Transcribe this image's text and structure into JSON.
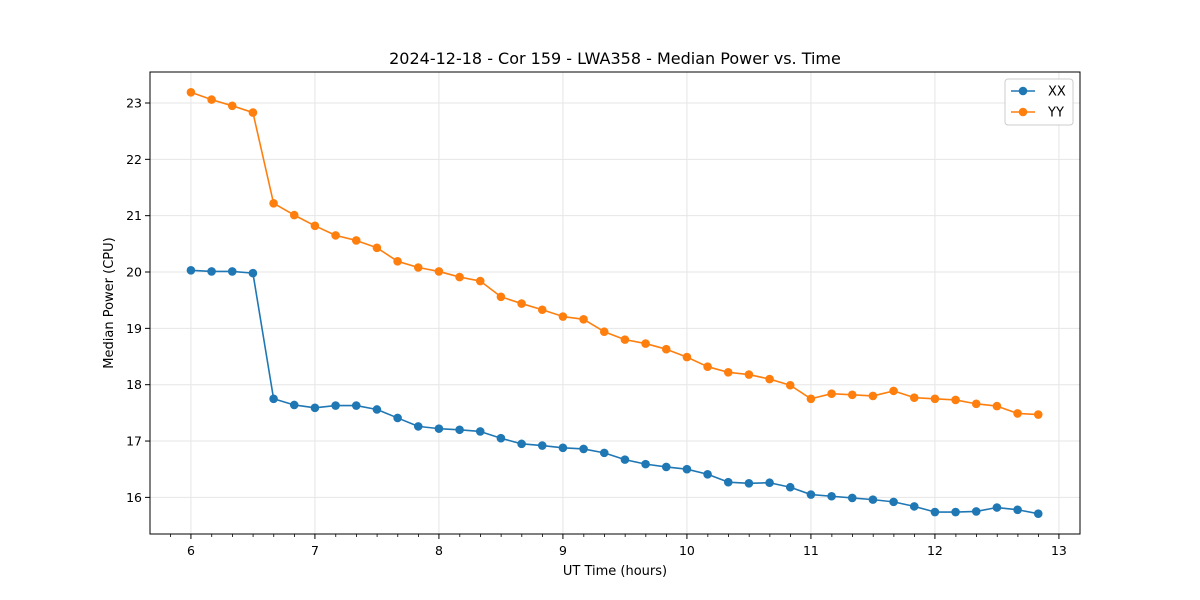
{
  "chart_data": {
    "type": "line",
    "title": "2024-12-18 - Cor 159 - LWA358 - Median Power vs. Time",
    "xlabel": "UT Time (hours)",
    "ylabel": "Median Power (CPU)",
    "xlim": [
      5.67,
      13.17
    ],
    "ylim": [
      15.35,
      23.55
    ],
    "grid": true,
    "legend_position": "top-right",
    "x_ticks": [
      6,
      7,
      8,
      9,
      10,
      11,
      12,
      13
    ],
    "x_tick_labels": [
      "6",
      "7",
      "8",
      "9",
      "10",
      "11",
      "12",
      "13"
    ],
    "x_minor_step": 0.1667,
    "y_ticks": [
      16,
      17,
      18,
      19,
      20,
      21,
      22,
      23
    ],
    "y_tick_labels": [
      "16",
      "17",
      "18",
      "19",
      "20",
      "21",
      "22",
      "23"
    ],
    "x": [
      6.0,
      6.1667,
      6.3333,
      6.5,
      6.6667,
      6.8333,
      7.0,
      7.1667,
      7.3333,
      7.5,
      7.6667,
      7.8333,
      8.0,
      8.1667,
      8.3333,
      8.5,
      8.6667,
      8.8333,
      9.0,
      9.1667,
      9.3333,
      9.5,
      9.6667,
      9.8333,
      10.0,
      10.1667,
      10.3333,
      10.5,
      10.6667,
      10.8333,
      11.0,
      11.1667,
      11.3333,
      11.5,
      11.6667,
      11.8333,
      12.0,
      12.1667,
      12.3333,
      12.5,
      12.6667,
      12.8333
    ],
    "series": [
      {
        "name": "XX",
        "color": "#1f77b4",
        "values": [
          20.03,
          20.01,
          20.01,
          19.98,
          17.75,
          17.64,
          17.59,
          17.63,
          17.63,
          17.56,
          17.41,
          17.26,
          17.22,
          17.2,
          17.17,
          17.05,
          16.95,
          16.92,
          16.88,
          16.86,
          16.79,
          16.67,
          16.59,
          16.54,
          16.5,
          16.41,
          16.27,
          16.25,
          16.26,
          16.18,
          16.05,
          16.02,
          15.99,
          15.96,
          15.92,
          15.84,
          15.74,
          15.74,
          15.75,
          15.82,
          15.78,
          15.71
        ]
      },
      {
        "name": "YY",
        "color": "#ff7f0e",
        "values": [
          23.19,
          23.06,
          22.95,
          22.83,
          21.22,
          21.01,
          20.82,
          20.65,
          20.56,
          20.43,
          20.19,
          20.08,
          20.01,
          19.91,
          19.84,
          19.56,
          19.44,
          19.33,
          19.21,
          19.16,
          18.94,
          18.8,
          18.73,
          18.63,
          18.49,
          18.32,
          18.22,
          18.18,
          18.1,
          17.99,
          17.75,
          17.84,
          17.82,
          17.8,
          17.89,
          17.77,
          17.75,
          17.73,
          17.66,
          17.62,
          17.49,
          17.47
        ]
      }
    ]
  }
}
